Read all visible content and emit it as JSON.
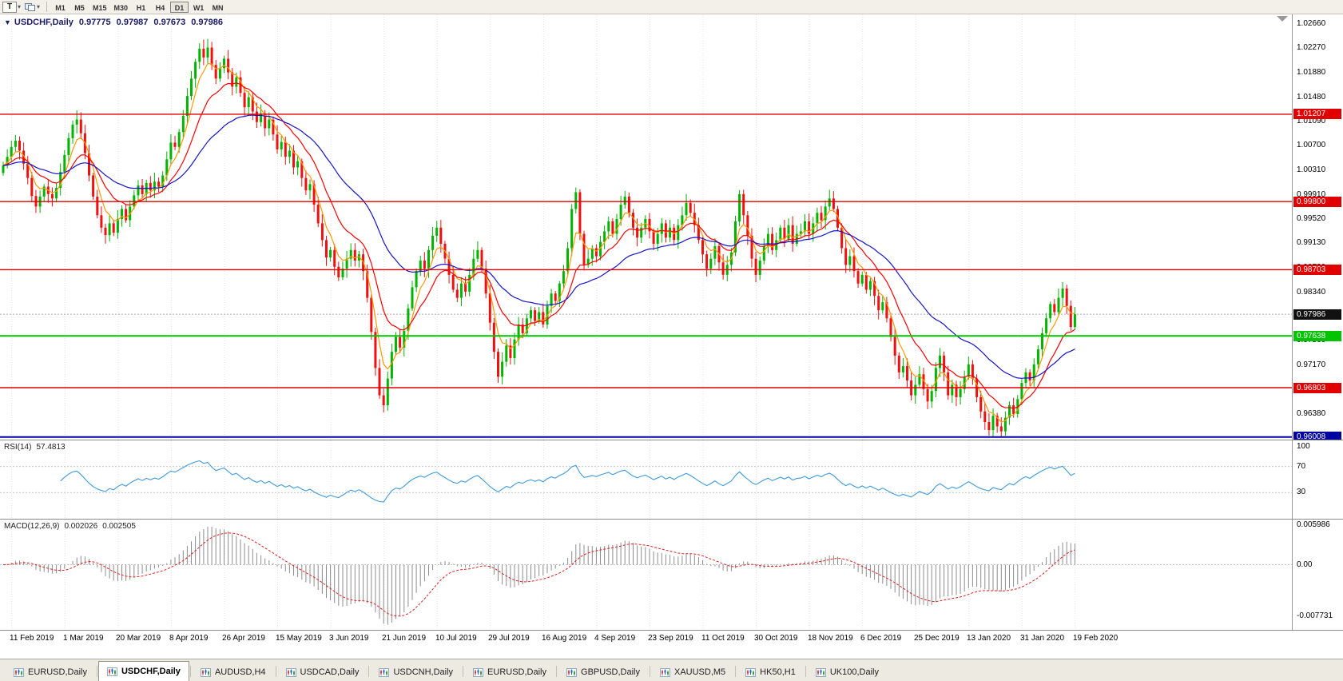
{
  "toolbar": {
    "t_button": "T",
    "timeframes": [
      "M1",
      "M5",
      "M15",
      "M30",
      "H1",
      "H4",
      "D1",
      "W1",
      "MN"
    ],
    "active_timeframe": "D1"
  },
  "chart_header": {
    "collapse_icon": "▼",
    "title": "USDCHF,Daily",
    "open": "0.97775",
    "high": "0.97987",
    "low": "0.97673",
    "close": "0.97986"
  },
  "colors": {
    "candle_up": "#00B400",
    "candle_down": "#F01010",
    "grid": "#E2E2E2",
    "bid_line": "#ABABAB",
    "axis_text": "#000000"
  },
  "chart_data": {
    "type": "candlestick",
    "title": "USDCHF,Daily",
    "symbol": "USDCHF",
    "timeframe": "Daily",
    "y_max": 1.02814,
    "y_min": 0.95967,
    "y_axis_labels": [
      "1.02660",
      "1.02270",
      "1.01880",
      "1.01480",
      "1.01090",
      "1.00700",
      "1.00310",
      "0.99910",
      "0.99520",
      "0.99130",
      "0.98730",
      "0.98340",
      "0.97950",
      "0.97560",
      "0.97170",
      "0.96770",
      "0.96380",
      "0.95990"
    ],
    "x_labels": [
      "11 Feb 2019",
      "1 Mar 2019",
      "20 Mar 2019",
      "8 Apr 2019",
      "26 Apr 2019",
      "15 May 2019",
      "3 Jun 2019",
      "21 Jun 2019",
      "10 Jul 2019",
      "29 Jul 2019",
      "16 Aug 2019",
      "4 Sep 2019",
      "23 Sep 2019",
      "11 Oct 2019",
      "30 Oct 2019",
      "18 Nov 2019",
      "6 Dec 2019",
      "25 Dec 2019",
      "13 Jan 2020",
      "31 Jan 2020",
      "19 Feb 2020"
    ],
    "x_label_indices": [
      2,
      15,
      28,
      41,
      54,
      67,
      80,
      93,
      106,
      119,
      132,
      145,
      158,
      171,
      184,
      197,
      210,
      223,
      236,
      249,
      262
    ],
    "closes": [
      1.0038,
      1.0052,
      1.0068,
      1.0078,
      1.0062,
      1.0041,
      1.0018,
      0.9989,
      0.9972,
      0.9988,
      1.0004,
      0.9992,
      0.9985,
      1.0002,
      1.0028,
      1.0055,
      1.0082,
      1.0104,
      1.0112,
      1.009,
      1.0058,
      1.0022,
      0.9988,
      0.9958,
      0.9938,
      0.9926,
      0.9945,
      0.993,
      0.9952,
      0.9968,
      0.995,
      0.9972,
      0.999,
      1.0006,
      0.9992,
      1.001,
      0.9998,
      1.0012,
      1.0004,
      1.0022,
      1.0048,
      1.0075,
      1.0068,
      1.0092,
      1.0118,
      1.015,
      1.0178,
      1.0205,
      1.0226,
      1.0212,
      1.0228,
      1.02,
      1.0178,
      1.0195,
      1.021,
      1.0188,
      1.0165,
      1.018,
      1.0155,
      1.0132,
      1.0148,
      1.0125,
      1.0108,
      1.0122,
      1.0098,
      1.0112,
      1.0088,
      1.0064,
      1.0076,
      1.0052,
      1.0062,
      1.0035,
      1.0045,
      1.0018,
      0.9998,
      1.0008,
      0.9975,
      0.9945,
      0.9918,
      0.989,
      0.9902,
      0.9875,
      0.9858,
      0.9872,
      0.9888,
      0.9902,
      0.9885,
      0.9895,
      0.9868,
      0.9825,
      0.977,
      0.9712,
      0.9668,
      0.9652,
      0.9695,
      0.9738,
      0.9762,
      0.9745,
      0.9772,
      0.9808,
      0.9842,
      0.9868,
      0.9885,
      0.9872,
      0.9902,
      0.9925,
      0.9938,
      0.9912,
      0.9888,
      0.9862,
      0.9838,
      0.9825,
      0.9848,
      0.9835,
      0.9862,
      0.9888,
      0.9902,
      0.9872,
      0.9832,
      0.9785,
      0.9738,
      0.9698,
      0.9722,
      0.9748,
      0.9728,
      0.9758,
      0.9782,
      0.9768,
      0.9792,
      0.9805,
      0.9788,
      0.9802,
      0.9782,
      0.9812,
      0.9832,
      0.982,
      0.9848,
      0.9868,
      0.9905,
      0.9968,
      0.9995,
      0.9928,
      0.9878,
      0.9888,
      0.9905,
      0.9892,
      0.9915,
      0.9932,
      0.9948,
      0.9928,
      0.9952,
      0.9975,
      0.9988,
      0.9962,
      0.9938,
      0.9922,
      0.9938,
      0.9952,
      0.9932,
      0.9912,
      0.9928,
      0.9945,
      0.9922,
      0.9938,
      0.9918,
      0.9942,
      0.9958,
      0.9978,
      0.9962,
      0.9942,
      0.9918,
      0.9895,
      0.9872,
      0.9888,
      0.9908,
      0.9882,
      0.9862,
      0.9878,
      0.9898,
      0.9948,
      0.9992,
      0.9958,
      0.9925,
      0.9888,
      0.9862,
      0.9885,
      0.9908,
      0.9928,
      0.9902,
      0.9918,
      0.9938,
      0.992,
      0.9942,
      0.9912,
      0.9928,
      0.9932,
      0.9948,
      0.9928,
      0.9945,
      0.9962,
      0.995,
      0.9972,
      0.9985,
      0.9968,
      0.9938,
      0.9905,
      0.9878,
      0.9892,
      0.9868,
      0.9848,
      0.9862,
      0.9838,
      0.9852,
      0.9828,
      0.9805,
      0.9818,
      0.9792,
      0.9762,
      0.9732,
      0.9705,
      0.9715,
      0.9692,
      0.9668,
      0.9685,
      0.9702,
      0.9678,
      0.9658,
      0.9675,
      0.9712,
      0.9732,
      0.9705,
      0.9668,
      0.9685,
      0.9665,
      0.9678,
      0.9698,
      0.9718,
      0.9695,
      0.9665,
      0.9642,
      0.9625,
      0.9612,
      0.9635,
      0.9618,
      0.961,
      0.9632,
      0.9652,
      0.9638,
      0.9662,
      0.9688,
      0.9705,
      0.9692,
      0.9718,
      0.9742,
      0.9768,
      0.9792,
      0.9815,
      0.9802,
      0.9825,
      0.984,
      0.9812,
      0.9778,
      0.97986
    ],
    "horizontal_lines": [
      {
        "price": 1.01207,
        "label": "1.01207",
        "color": "#E00000",
        "width": 1.4
      },
      {
        "price": 0.998,
        "label": "0.99800",
        "color": "#E00000",
        "width": 1.4
      },
      {
        "price": 0.98703,
        "label": "0.98703",
        "color": "#E00000",
        "width": 1.4
      },
      {
        "price": 0.97638,
        "label": "0.97638",
        "color": "#00C400",
        "width": 2
      },
      {
        "price": 0.96803,
        "label": "0.96803",
        "color": "#E00000",
        "width": 1.4
      },
      {
        "price": 0.96008,
        "label": "0.96008",
        "color": "#0000A0",
        "width": 2
      }
    ],
    "current_price": {
      "value": 0.97986,
      "label": "0.97986",
      "box_color": "#111111"
    },
    "moving_averages": [
      {
        "period": 5,
        "color": "#FF9900"
      },
      {
        "period": 13,
        "color": "#FF0000"
      },
      {
        "period": 34,
        "color": "#1414CC"
      }
    ],
    "indicators": [
      {
        "name": "RSI",
        "label_name": "RSI(14)",
        "label_value": "57.4813",
        "period": 14,
        "levels": [
          70,
          30
        ],
        "axis_labels": [
          "100",
          "70",
          "30"
        ],
        "color": "#3E9ADF"
      },
      {
        "name": "MACD",
        "label_name": "MACD(12,26,9)",
        "value_main": "0.002026",
        "value_signal": "0.002505",
        "fast": 12,
        "slow": 26,
        "signal_period": 9,
        "axis_labels": [
          "0.005986",
          "0.00",
          "-0.007731"
        ],
        "histogram_color": "#8C8C8C",
        "signal_color": "#E02020"
      }
    ]
  },
  "bottom_tabs": {
    "tabs": [
      {
        "label": "EURUSD,Daily",
        "active": false
      },
      {
        "label": "USDCHF,Daily",
        "active": true
      },
      {
        "label": "AUDUSD,H4",
        "active": false
      },
      {
        "label": "USDCAD,Daily",
        "active": false
      },
      {
        "label": "USDCNH,Daily",
        "active": false
      },
      {
        "label": "EURUSD,Daily",
        "active": false
      },
      {
        "label": "GBPUSD,Daily",
        "active": false
      },
      {
        "label": "XAUUSD,M5",
        "active": false
      },
      {
        "label": "HK50,H1",
        "active": false
      },
      {
        "label": "UK100,Daily",
        "active": false
      }
    ]
  }
}
